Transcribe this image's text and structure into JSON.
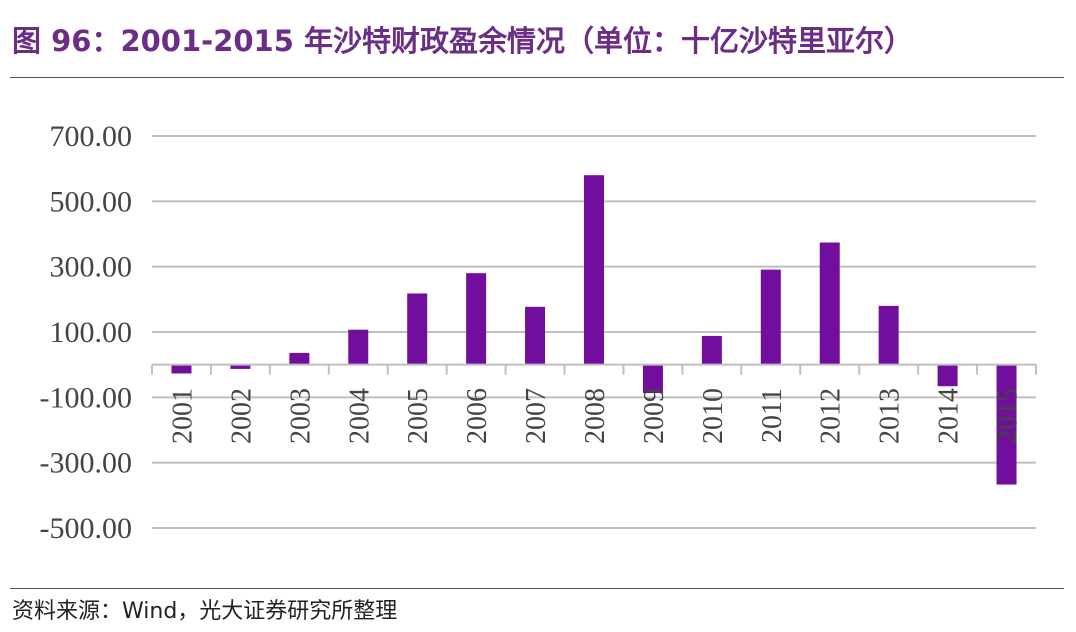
{
  "header": {
    "title": "图 96：2001-2015 年沙特财政盈余情况（单位：十亿沙特里亚尔）"
  },
  "footer": {
    "source": "资料来源：Wind，光大证券研究所整理"
  },
  "colors": {
    "bar": "#720e9e",
    "title": "#6b2d86",
    "grid": "#bfbfbf"
  },
  "chart_data": {
    "type": "bar",
    "title": "",
    "xlabel": "",
    "ylabel": "",
    "categories": [
      "2001",
      "2002",
      "2003",
      "2004",
      "2005",
      "2006",
      "2007",
      "2008",
      "2009",
      "2010",
      "2011",
      "2012",
      "2013",
      "2014",
      "2015"
    ],
    "values": [
      -27,
      -13,
      36,
      107,
      218,
      280,
      177,
      580,
      -87,
      88,
      291,
      374,
      180,
      -66,
      -367
    ],
    "ylim": [
      -500,
      700
    ],
    "yticks": [
      700,
      500,
      300,
      100,
      -100,
      -300,
      -500
    ],
    "ytick_labels": [
      "700.00",
      "500.00",
      "300.00",
      "100.00",
      "-100.00",
      "-300.00",
      "-500.00"
    ],
    "grid": true,
    "legend": "none"
  }
}
